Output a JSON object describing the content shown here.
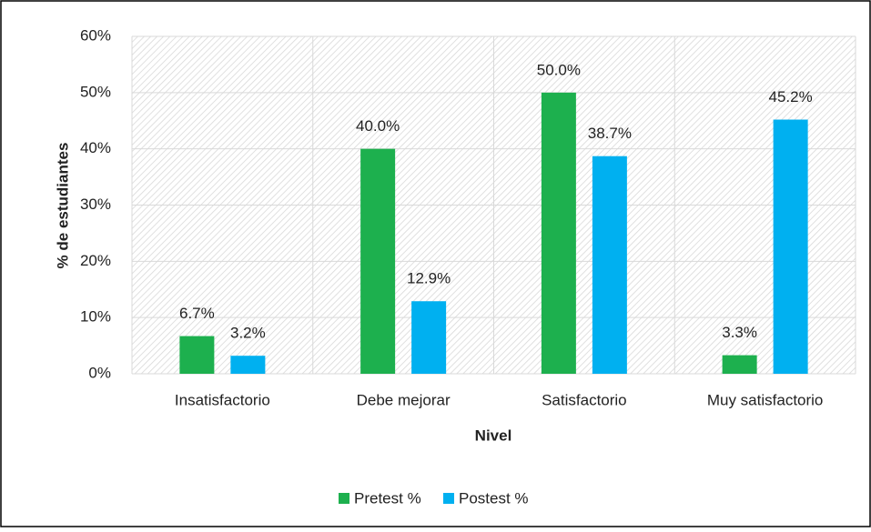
{
  "chart_data": {
    "type": "bar",
    "categories": [
      "Insatisfactorio",
      "Debe mejorar",
      "Satisfactorio",
      "Muy satisfactorio"
    ],
    "series": [
      {
        "name": "Pretest %",
        "color": "#1db04e",
        "values": [
          6.7,
          40.0,
          50.0,
          3.3
        ],
        "value_labels": [
          "6.7%",
          "40.0%",
          "50.0%",
          "3.3%"
        ]
      },
      {
        "name": "Postest %",
        "color": "#00b0f0",
        "values": [
          3.2,
          12.9,
          38.7,
          45.2
        ],
        "value_labels": [
          "3.2%",
          "12.9%",
          "38.7%",
          "45.2%"
        ]
      }
    ],
    "ylabel": "% de estudiantes",
    "xlabel": "Nivel",
    "ylim": [
      0,
      60
    ],
    "yticks": [
      {
        "value": 0,
        "label": "0%"
      },
      {
        "value": 10,
        "label": "10%"
      },
      {
        "value": 20,
        "label": "20%"
      },
      {
        "value": 30,
        "label": "30%"
      },
      {
        "value": 40,
        "label": "40%"
      },
      {
        "value": 50,
        "label": "50%"
      },
      {
        "value": 60,
        "label": "60%"
      }
    ],
    "grid": true,
    "legend": "bottom"
  }
}
